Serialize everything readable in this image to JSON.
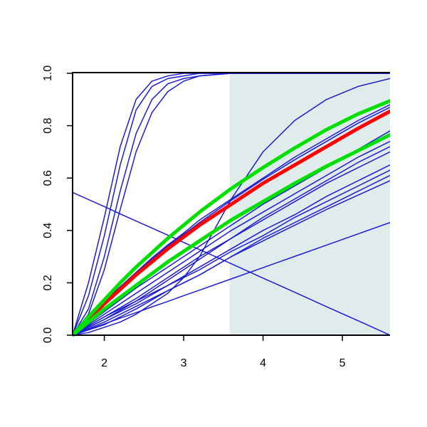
{
  "chart_data": {
    "type": "line",
    "x": [
      1.6,
      1.8,
      2.0,
      2.2,
      2.4,
      2.6,
      2.8,
      3.0,
      3.2,
      3.6,
      4.0,
      4.4,
      4.8,
      5.2,
      5.6
    ],
    "xlim": [
      1.6,
      5.6
    ],
    "ylim": [
      0,
      1
    ],
    "xticks": [
      2,
      3,
      4,
      5
    ],
    "yticks": [
      {
        "value": 0,
        "label": "0.0"
      },
      0.2,
      0.4,
      0.6,
      0.8,
      {
        "value": 1,
        "label": "1.0"
      }
    ],
    "shaded_x": [
      3.58,
      5.6
    ],
    "shade_color": "#e0ecec",
    "series": [
      {
        "color": "#1c1cd0",
        "line_width": 1.5,
        "values": [
          0,
          0.2,
          0.45,
          0.72,
          0.9,
          0.97,
          0.99,
          1,
          1,
          1,
          1,
          1,
          1,
          1,
          1
        ]
      },
      {
        "color": "#1c1cd0",
        "line_width": 1.5,
        "values": [
          0,
          0.15,
          0.38,
          0.65,
          0.86,
          0.95,
          0.98,
          0.99,
          1,
          1,
          1,
          1,
          1,
          1,
          1
        ]
      },
      {
        "color": "#1c1cd0",
        "line_width": 1.5,
        "values": [
          0,
          0.1,
          0.3,
          0.55,
          0.77,
          0.9,
          0.96,
          0.98,
          0.99,
          1,
          1,
          1,
          1,
          1,
          1
        ]
      },
      {
        "color": "#1c1cd0",
        "line_width": 1.5,
        "values": [
          0,
          0.08,
          0.25,
          0.48,
          0.7,
          0.85,
          0.93,
          0.97,
          0.99,
          1,
          1,
          1,
          1,
          1,
          1
        ]
      },
      {
        "color": "#1c1cd0",
        "line_width": 1.5,
        "values": [
          0,
          0.01,
          0.03,
          0.05,
          0.08,
          0.12,
          0.16,
          0.22,
          0.3,
          0.52,
          0.7,
          0.82,
          0.9,
          0.95,
          0.98
        ]
      },
      {
        "color": "#1c1cd0",
        "line_width": 1.5,
        "values": [
          0.545,
          0.518,
          0.491,
          0.463,
          0.436,
          0.409,
          0.382,
          0.354,
          0.327,
          0.273,
          0.218,
          0.164,
          0.109,
          0.055,
          0
        ]
      },
      {
        "color": "#1c1cd0",
        "line_width": 1.5,
        "values": [
          0,
          0.022,
          0.043,
          0.065,
          0.086,
          0.108,
          0.129,
          0.151,
          0.172,
          0.215,
          0.258,
          0.301,
          0.344,
          0.387,
          0.43
        ]
      },
      {
        "color": "#1c1cd0",
        "line_width": 1.5,
        "values": [
          0,
          0.065,
          0.13,
          0.185,
          0.24,
          0.295,
          0.345,
          0.39,
          0.44,
          0.52,
          0.6,
          0.68,
          0.75,
          0.82,
          0.88
        ]
      },
      {
        "color": "#1c1cd0",
        "line_width": 1.5,
        "values": [
          0,
          0.06,
          0.12,
          0.18,
          0.235,
          0.29,
          0.34,
          0.385,
          0.43,
          0.515,
          0.595,
          0.67,
          0.74,
          0.81,
          0.87
        ]
      },
      {
        "color": "#1c1cd0",
        "line_width": 1.5,
        "values": [
          0,
          0.045,
          0.09,
          0.135,
          0.18,
          0.22,
          0.26,
          0.3,
          0.34,
          0.42,
          0.5,
          0.57,
          0.64,
          0.71,
          0.78
        ]
      },
      {
        "color": "#1c1cd0",
        "line_width": 1.5,
        "values": [
          0,
          0.04,
          0.08,
          0.12,
          0.16,
          0.2,
          0.24,
          0.28,
          0.32,
          0.4,
          0.47,
          0.54,
          0.61,
          0.68,
          0.74
        ]
      },
      {
        "color": "#1c1cd0",
        "line_width": 1.5,
        "values": [
          0,
          0.03,
          0.06,
          0.095,
          0.13,
          0.17,
          0.21,
          0.25,
          0.29,
          0.37,
          0.45,
          0.52,
          0.59,
          0.66,
          0.72
        ]
      },
      {
        "color": "#1c1cd0",
        "line_width": 1.5,
        "values": [
          0,
          0.035,
          0.07,
          0.105,
          0.14,
          0.18,
          0.22,
          0.26,
          0.3,
          0.37,
          0.44,
          0.51,
          0.58,
          0.64,
          0.7
        ]
      },
      {
        "color": "#1c1cd0",
        "line_width": 1.5,
        "values": [
          0,
          0.03,
          0.06,
          0.09,
          0.12,
          0.155,
          0.19,
          0.225,
          0.26,
          0.33,
          0.4,
          0.46,
          0.53,
          0.59,
          0.65
        ]
      },
      {
        "color": "#1c1cd0",
        "line_width": 1.5,
        "values": [
          0,
          0.035,
          0.07,
          0.1,
          0.13,
          0.16,
          0.19,
          0.22,
          0.25,
          0.32,
          0.38,
          0.45,
          0.51,
          0.57,
          0.63
        ]
      },
      {
        "color": "#1c1cd0",
        "line_width": 1.5,
        "values": [
          0,
          0.02,
          0.04,
          0.07,
          0.1,
          0.135,
          0.17,
          0.2,
          0.23,
          0.3,
          0.37,
          0.43,
          0.49,
          0.55,
          0.61
        ]
      },
      {
        "color": "#1c1cd0",
        "line_width": 1.5,
        "values": [
          0,
          0.025,
          0.05,
          0.08,
          0.11,
          0.14,
          0.17,
          0.2,
          0.23,
          0.3,
          0.36,
          0.42,
          0.48,
          0.535,
          0.59
        ]
      },
      {
        "color": "#ff0000",
        "line_width": 5,
        "values": [
          0,
          0.06,
          0.12,
          0.175,
          0.23,
          0.28,
          0.33,
          0.375,
          0.42,
          0.5,
          0.58,
          0.65,
          0.72,
          0.79,
          0.855
        ]
      },
      {
        "color": "#00e000",
        "line_width": 5,
        "values": [
          0,
          0.07,
          0.135,
          0.2,
          0.26,
          0.315,
          0.37,
          0.42,
          0.47,
          0.56,
          0.64,
          0.715,
          0.785,
          0.845,
          0.895
        ]
      },
      {
        "color": "#00e000",
        "line_width": 5,
        "values": [
          0,
          0.05,
          0.1,
          0.145,
          0.19,
          0.235,
          0.28,
          0.32,
          0.36,
          0.44,
          0.51,
          0.58,
          0.645,
          0.705,
          0.765
        ]
      }
    ]
  }
}
